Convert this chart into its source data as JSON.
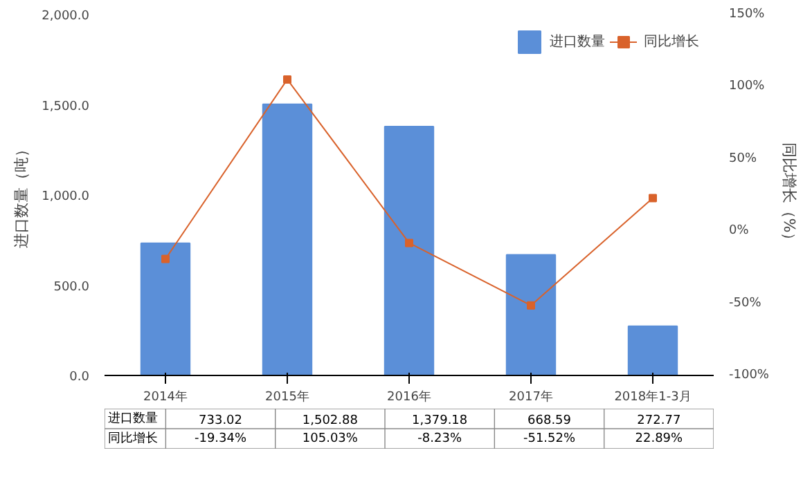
{
  "chart_data": {
    "type": "bar",
    "categories": [
      "2014年",
      "2015年",
      "2016年",
      "2017年",
      "2018年1-3月"
    ],
    "series": [
      {
        "name": "进口数量",
        "color": "#5b8fd8",
        "values": [
          733.02,
          1502.88,
          1379.18,
          668.59,
          272.77
        ],
        "value_labels": [
          "733.02",
          "1,502.88",
          "1,379.18",
          "668.59",
          "272.77"
        ]
      },
      {
        "name": "同比增长",
        "type": "line",
        "axis": "y2",
        "color": "#d9622b",
        "marker": "square",
        "values": [
          -19.34,
          105.03,
          -8.23,
          -51.52,
          22.89
        ],
        "value_labels": [
          "-19.34%",
          "105.03%",
          "-8.23%",
          "-51.52%",
          "22.89%"
        ]
      }
    ],
    "ylabel": "进口数量（吨）",
    "y2label": "同比增长（%）",
    "ylim": [
      0,
      2000
    ],
    "yticks": [
      {
        "value": 0,
        "label": "0.0"
      },
      {
        "value": 500,
        "label": "500.0"
      },
      {
        "value": 1000,
        "label": "1,000.0"
      },
      {
        "value": 1500,
        "label": "1,500.0"
      },
      {
        "value": 2000,
        "label": "2,000.0"
      }
    ],
    "y2lim": [
      -100,
      150
    ],
    "y2ticks": [
      {
        "value": -100,
        "label": "-100%"
      },
      {
        "value": -50,
        "label": "-50%"
      },
      {
        "value": 0,
        "label": "0%"
      },
      {
        "value": 50,
        "label": "50%"
      },
      {
        "value": 100,
        "label": "100%"
      },
      {
        "value": 150,
        "label": "150%"
      }
    ],
    "legend": "top right",
    "grid": false
  }
}
